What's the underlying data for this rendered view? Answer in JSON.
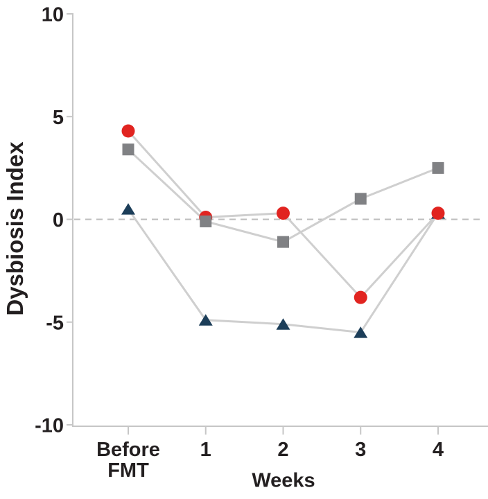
{
  "chart_data": {
    "type": "line",
    "title": "",
    "xlabel": "Weeks",
    "ylabel": "Dysbiosis Index",
    "categories": [
      "Before FMT",
      "1",
      "2",
      "3",
      "4"
    ],
    "ylim": [
      -10,
      10
    ],
    "yticks": [
      "10",
      "5",
      "0",
      "-5",
      "-10"
    ],
    "ytick_values": [
      10,
      5,
      0,
      -5,
      -10
    ],
    "reference_line": {
      "value": 0,
      "style": "dashed"
    },
    "grid": false,
    "legend": "none",
    "series": [
      {
        "name": "red-circle-series",
        "marker": "circle",
        "color": "#e12420",
        "values": [
          4.3,
          0.1,
          0.3,
          -3.8,
          0.3
        ]
      },
      {
        "name": "gray-square-series",
        "marker": "square",
        "color": "#808184",
        "values": [
          3.4,
          -0.1,
          -1.1,
          1.0,
          2.5
        ]
      },
      {
        "name": "navy-triangle-series",
        "marker": "triangle",
        "color": "#1c3e59",
        "values": [
          0.5,
          -4.9,
          -5.1,
          -5.5,
          0.3
        ]
      }
    ],
    "colors": {
      "connector_line": "#cfcfcf",
      "axis": "#c6c6c6",
      "dashed_reference": "#bdbdbd",
      "text": "#231f20"
    }
  }
}
